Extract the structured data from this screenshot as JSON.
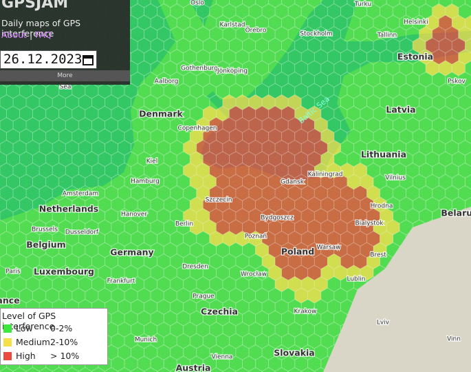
{
  "header": {
    "title": "GPSJAM",
    "subtitle": "Daily maps of GPS interference",
    "links": [
      "About",
      "FAQ"
    ],
    "separator": "|",
    "date": "26.12.2023",
    "more": "More"
  },
  "legend": {
    "title": "Level of GPS interference",
    "items": [
      {
        "label": "Low",
        "range": "0-2%",
        "color": "#3be83b"
      },
      {
        "label": "Medium",
        "range": "2-10%",
        "color": "#f5e04a"
      },
      {
        "label": "High",
        "range": "> 10%",
        "color": "#ec4a3c"
      }
    ]
  },
  "map_labels": [
    "Oslo",
    "Turku",
    "Karlstad",
    "Örebro",
    "Stockholm",
    "Helsinki",
    "Tallinn",
    "Estonia",
    "Gothenburg",
    "Jönköping",
    "Pskov",
    "Aalborg",
    "Sea",
    "Latvia",
    "Denmark",
    "Copenhagen",
    "Baltic Sea",
    "Lithuania",
    "Kiel",
    "Kaliningrad",
    "Gdansk",
    "Vilnius",
    "Hamburg",
    "Amsterdam",
    "Szczecin",
    "Netherlands",
    "Hanover",
    "Hrodna",
    "Belarus",
    "Bydgoszcz",
    "Berlin",
    "Bialystok",
    "Brussels",
    "Dusseldorf",
    "Poznań",
    "Belgium",
    "Germany",
    "Poland",
    "Warsaw",
    "Brest",
    "Dresden",
    "Paris",
    "Luxembourg",
    "Wrocław",
    "Lublin",
    "Frankfurt",
    "Prague",
    "ance",
    "Czechia",
    "Krakow",
    "Lviv",
    "Munich",
    "Vinn",
    "Slovakia",
    "Vienna",
    "Austria"
  ]
}
